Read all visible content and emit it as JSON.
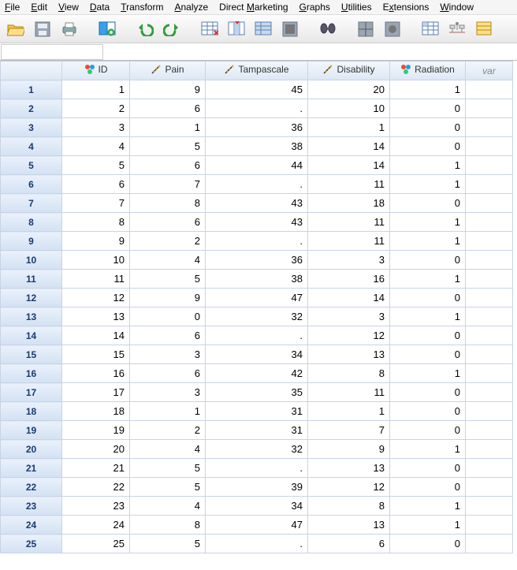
{
  "menu": [
    "File",
    "Edit",
    "View",
    "Data",
    "Transform",
    "Analyze",
    "Direct Marketing",
    "Graphs",
    "Utilities",
    "Extensions",
    "Window"
  ],
  "menuUnderline": [
    0,
    0,
    0,
    0,
    0,
    0,
    7,
    0,
    0,
    1,
    0
  ],
  "columns": [
    {
      "name": "ID",
      "type": "nominal",
      "width": "w-id"
    },
    {
      "name": "Pain",
      "type": "scale",
      "width": "w-pain"
    },
    {
      "name": "Tampascale",
      "type": "scale",
      "width": "w-tampa"
    },
    {
      "name": "Disability",
      "type": "scale",
      "width": "w-dis"
    },
    {
      "name": "Radiation",
      "type": "nominal",
      "width": "w-rad"
    }
  ],
  "varLabel": "var",
  "rows": [
    [
      1,
      9,
      45,
      20,
      1
    ],
    [
      2,
      6,
      ".",
      10,
      0
    ],
    [
      3,
      1,
      36,
      1,
      0
    ],
    [
      4,
      5,
      38,
      14,
      0
    ],
    [
      5,
      6,
      44,
      14,
      1
    ],
    [
      6,
      7,
      ".",
      11,
      1
    ],
    [
      7,
      8,
      43,
      18,
      0
    ],
    [
      8,
      6,
      43,
      11,
      1
    ],
    [
      9,
      2,
      ".",
      11,
      1
    ],
    [
      10,
      4,
      36,
      3,
      0
    ],
    [
      11,
      5,
      38,
      16,
      1
    ],
    [
      12,
      9,
      47,
      14,
      0
    ],
    [
      13,
      0,
      32,
      3,
      1
    ],
    [
      14,
      6,
      ".",
      12,
      0
    ],
    [
      15,
      3,
      34,
      13,
      0
    ],
    [
      16,
      6,
      42,
      8,
      1
    ],
    [
      17,
      3,
      35,
      11,
      0
    ],
    [
      18,
      1,
      31,
      1,
      0
    ],
    [
      19,
      2,
      31,
      7,
      0
    ],
    [
      20,
      4,
      32,
      9,
      1
    ],
    [
      21,
      5,
      ".",
      13,
      0
    ],
    [
      22,
      5,
      39,
      12,
      0
    ],
    [
      23,
      4,
      34,
      8,
      1
    ],
    [
      24,
      8,
      47,
      13,
      1
    ],
    [
      25,
      5,
      ".",
      6,
      0
    ]
  ],
  "colors": {
    "headerGradTop": "#f2f6fb",
    "headerGradBot": "#dde8f5",
    "rowHeadText": "#1a3a6e",
    "gridBorder": "#c8d4e3"
  }
}
